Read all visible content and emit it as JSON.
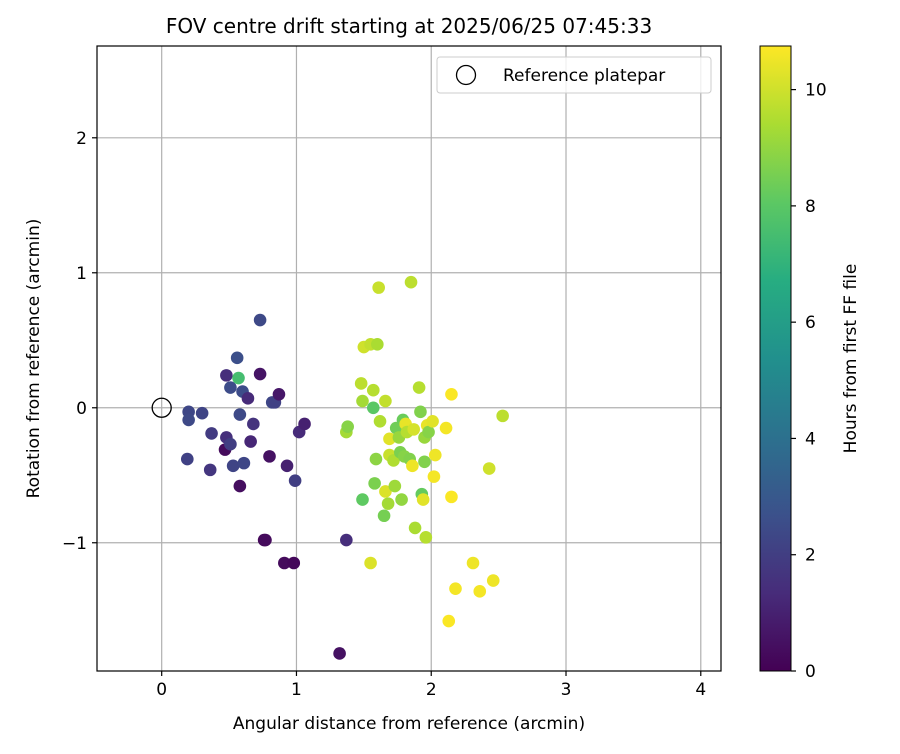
{
  "chart_data": {
    "type": "scatter",
    "title": "FOV centre drift starting at 2025/06/25 07:45:33",
    "xlabel": "Angular distance from reference (arcmin)",
    "ylabel": "Rotation from reference (arcmin)",
    "xlim": [
      -0.48,
      4.15
    ],
    "ylim": [
      -1.95,
      2.68
    ],
    "xticks": [
      0,
      1,
      2,
      3,
      4
    ],
    "yticks": [
      -1,
      0,
      1,
      2
    ],
    "grid": true,
    "legend": {
      "position": "top-right",
      "entries": [
        "Reference platepar"
      ]
    },
    "reference_point": {
      "label": "Reference platepar",
      "x": 0,
      "y": 0,
      "marker": "open circle"
    },
    "colorbar": {
      "label": "Hours from first FF file",
      "colormap": "viridis",
      "range": [
        0,
        10.75
      ],
      "ticks": [
        0,
        2,
        4,
        6,
        8,
        10
      ]
    },
    "series": [
      {
        "color_by": "hours",
        "points": [
          {
            "x": 0.2,
            "y": -0.03,
            "h": 2.3
          },
          {
            "x": 0.2,
            "y": -0.09,
            "h": 2.4
          },
          {
            "x": 0.3,
            "y": -0.04,
            "h": 2.2
          },
          {
            "x": 0.19,
            "y": -0.38,
            "h": 2.1
          },
          {
            "x": 0.37,
            "y": -0.19,
            "h": 1.9
          },
          {
            "x": 0.36,
            "y": -0.46,
            "h": 1.7
          },
          {
            "x": 0.48,
            "y": -0.22,
            "h": 1.5
          },
          {
            "x": 0.47,
            "y": -0.31,
            "h": 0.3
          },
          {
            "x": 0.51,
            "y": -0.27,
            "h": 2.0
          },
          {
            "x": 0.48,
            "y": 0.24,
            "h": 1.4
          },
          {
            "x": 0.51,
            "y": 0.15,
            "h": 2.5
          },
          {
            "x": 0.56,
            "y": 0.37,
            "h": 2.6
          },
          {
            "x": 0.57,
            "y": 0.22,
            "h": 7.5
          },
          {
            "x": 0.53,
            "y": -0.43,
            "h": 2.2
          },
          {
            "x": 0.58,
            "y": -0.05,
            "h": 2.4
          },
          {
            "x": 0.6,
            "y": 0.12,
            "h": 2.5
          },
          {
            "x": 0.64,
            "y": 0.07,
            "h": 1.3
          },
          {
            "x": 0.61,
            "y": -0.41,
            "h": 2.3
          },
          {
            "x": 0.58,
            "y": -0.58,
            "h": 0.4
          },
          {
            "x": 0.66,
            "y": -0.25,
            "h": 1.2
          },
          {
            "x": 0.68,
            "y": -0.12,
            "h": 1.6
          },
          {
            "x": 0.73,
            "y": 0.65,
            "h": 2.4
          },
          {
            "x": 0.73,
            "y": 0.25,
            "h": 0.6
          },
          {
            "x": 0.76,
            "y": -0.98,
            "h": 0.2
          },
          {
            "x": 0.77,
            "y": -0.98,
            "h": 0.3
          },
          {
            "x": 0.8,
            "y": -0.36,
            "h": 0.5
          },
          {
            "x": 0.82,
            "y": 0.04,
            "h": 2.3
          },
          {
            "x": 0.84,
            "y": 0.04,
            "h": 2.1
          },
          {
            "x": 0.87,
            "y": 0.1,
            "h": 0.7
          },
          {
            "x": 0.91,
            "y": -1.15,
            "h": 0.3
          },
          {
            "x": 0.93,
            "y": -0.43,
            "h": 1.0
          },
          {
            "x": 0.98,
            "y": -1.15,
            "h": 0.2
          },
          {
            "x": 0.99,
            "y": -0.54,
            "h": 2.0
          },
          {
            "x": 1.02,
            "y": -0.18,
            "h": 1.3
          },
          {
            "x": 1.06,
            "y": -0.12,
            "h": 1.0
          },
          {
            "x": 1.32,
            "y": -1.82,
            "h": 0.5
          },
          {
            "x": 1.37,
            "y": -0.98,
            "h": 1.4
          },
          {
            "x": 1.37,
            "y": -0.18,
            "h": 9.3
          },
          {
            "x": 1.38,
            "y": -0.14,
            "h": 8.8
          },
          {
            "x": 1.48,
            "y": 0.18,
            "h": 9.7
          },
          {
            "x": 1.49,
            "y": 0.05,
            "h": 9.3
          },
          {
            "x": 1.49,
            "y": -0.68,
            "h": 8.1
          },
          {
            "x": 1.5,
            "y": 0.45,
            "h": 10.0
          },
          {
            "x": 1.55,
            "y": 0.47,
            "h": 9.8
          },
          {
            "x": 1.55,
            "y": -1.15,
            "h": 10.2
          },
          {
            "x": 1.57,
            "y": 0.13,
            "h": 9.6
          },
          {
            "x": 1.57,
            "y": 0.0,
            "h": 8.0
          },
          {
            "x": 1.58,
            "y": -0.56,
            "h": 8.6
          },
          {
            "x": 1.59,
            "y": -0.38,
            "h": 8.9
          },
          {
            "x": 1.6,
            "y": 0.47,
            "h": 9.4
          },
          {
            "x": 1.61,
            "y": 0.89,
            "h": 9.9
          },
          {
            "x": 1.62,
            "y": -0.1,
            "h": 9.5
          },
          {
            "x": 1.65,
            "y": -0.8,
            "h": 8.5
          },
          {
            "x": 1.66,
            "y": 0.05,
            "h": 9.8
          },
          {
            "x": 1.66,
            "y": -0.62,
            "h": 10.2
          },
          {
            "x": 1.68,
            "y": -0.71,
            "h": 9.3
          },
          {
            "x": 1.69,
            "y": -0.35,
            "h": 9.9
          },
          {
            "x": 1.69,
            "y": -0.23,
            "h": 10.3
          },
          {
            "x": 1.72,
            "y": -0.39,
            "h": 9.5
          },
          {
            "x": 1.73,
            "y": -0.58,
            "h": 9.2
          },
          {
            "x": 1.74,
            "y": -0.15,
            "h": 8.4
          },
          {
            "x": 1.76,
            "y": -0.22,
            "h": 9.1
          },
          {
            "x": 1.77,
            "y": -0.33,
            "h": 8.6
          },
          {
            "x": 1.78,
            "y": -0.68,
            "h": 9.0
          },
          {
            "x": 1.79,
            "y": -0.09,
            "h": 8.3
          },
          {
            "x": 1.8,
            "y": -0.36,
            "h": 8.8
          },
          {
            "x": 1.81,
            "y": -0.12,
            "h": 10.4
          },
          {
            "x": 1.82,
            "y": -0.18,
            "h": 9.6
          },
          {
            "x": 1.84,
            "y": -0.38,
            "h": 8.7
          },
          {
            "x": 1.85,
            "y": 0.93,
            "h": 9.7
          },
          {
            "x": 1.86,
            "y": -0.43,
            "h": 10.5
          },
          {
            "x": 1.87,
            "y": -0.16,
            "h": 10.1
          },
          {
            "x": 1.88,
            "y": -0.89,
            "h": 9.4
          },
          {
            "x": 1.91,
            "y": 0.15,
            "h": 9.6
          },
          {
            "x": 1.92,
            "y": -0.03,
            "h": 8.7
          },
          {
            "x": 1.93,
            "y": -0.64,
            "h": 8.2
          },
          {
            "x": 1.94,
            "y": -0.68,
            "h": 10.3
          },
          {
            "x": 1.95,
            "y": -0.4,
            "h": 8.7
          },
          {
            "x": 1.95,
            "y": -0.22,
            "h": 9.1
          },
          {
            "x": 1.96,
            "y": -0.96,
            "h": 9.6
          },
          {
            "x": 1.97,
            "y": -0.13,
            "h": 10.4
          },
          {
            "x": 1.98,
            "y": -0.18,
            "h": 8.8
          },
          {
            "x": 2.01,
            "y": -0.1,
            "h": 10.3
          },
          {
            "x": 2.02,
            "y": -0.51,
            "h": 10.6
          },
          {
            "x": 2.03,
            "y": -0.35,
            "h": 10.5
          },
          {
            "x": 2.11,
            "y": -0.15,
            "h": 10.6
          },
          {
            "x": 2.13,
            "y": -1.58,
            "h": 10.7
          },
          {
            "x": 2.15,
            "y": 0.1,
            "h": 10.7
          },
          {
            "x": 2.15,
            "y": -0.66,
            "h": 10.7
          },
          {
            "x": 2.18,
            "y": -1.34,
            "h": 10.6
          },
          {
            "x": 2.31,
            "y": -1.15,
            "h": 10.5
          },
          {
            "x": 2.36,
            "y": -1.36,
            "h": 10.6
          },
          {
            "x": 2.43,
            "y": -0.45,
            "h": 10.0
          },
          {
            "x": 2.46,
            "y": -1.28,
            "h": 10.5
          },
          {
            "x": 2.53,
            "y": -0.06,
            "h": 9.7
          }
        ]
      }
    ]
  }
}
